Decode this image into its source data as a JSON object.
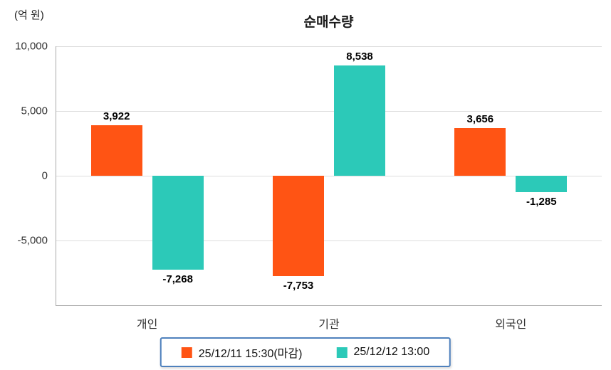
{
  "chart_data": {
    "type": "bar",
    "title": "순매수량",
    "unit": "(억 원)",
    "categories": [
      "개인",
      "기관",
      "외국인"
    ],
    "series": [
      {
        "name": "25/12/11 15:30(마감)",
        "color": "#ff5414",
        "values": [
          3922,
          -7753,
          3656
        ]
      },
      {
        "name": "25/12/12 13:00",
        "color": "#2cc9b8",
        "values": [
          -7268,
          8538,
          -1285
        ]
      }
    ],
    "value_labels": [
      [
        "3,922",
        "-7,753",
        "3,656"
      ],
      [
        "-7,268",
        "8,538",
        "-1,285"
      ]
    ],
    "y_ticks": [
      10000,
      5000,
      0,
      -5000
    ],
    "y_tick_labels": [
      "10,000",
      "5,000",
      "0",
      "-5,000"
    ],
    "ylim": [
      -10000,
      10000
    ],
    "grid": true,
    "legend_position": "bottom"
  }
}
